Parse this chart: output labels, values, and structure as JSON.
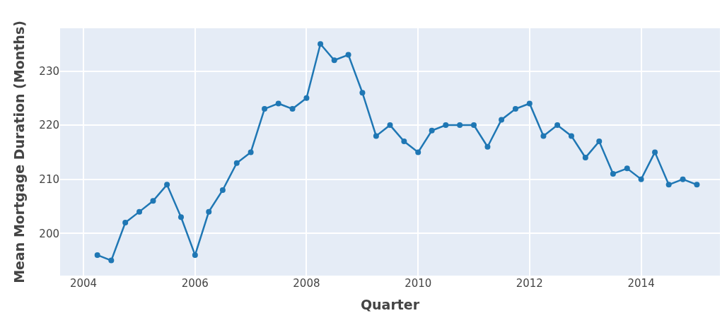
{
  "chart_data": {
    "type": "line",
    "xlabel": "Quarter",
    "ylabel": "Mean Mortgage Duration (Months)",
    "x": [
      "2004-04",
      "2004-07",
      "2004-10",
      "2005-01",
      "2005-04",
      "2005-07",
      "2005-10",
      "2006-01",
      "2006-04",
      "2006-07",
      "2006-10",
      "2007-01",
      "2007-04",
      "2007-07",
      "2007-10",
      "2008-01",
      "2008-04",
      "2008-07",
      "2008-10",
      "2009-01",
      "2009-04",
      "2009-07",
      "2009-10",
      "2010-01",
      "2010-04",
      "2010-07",
      "2010-10",
      "2011-01",
      "2011-04",
      "2011-07",
      "2011-10",
      "2012-01",
      "2012-04",
      "2012-07",
      "2012-10",
      "2013-01",
      "2013-04",
      "2013-07",
      "2013-10",
      "2014-01",
      "2014-04",
      "2014-07",
      "2014-10",
      "2015-01"
    ],
    "series": [
      {
        "color": "#1f77b4",
        "values": [
          196,
          195,
          202,
          204,
          206,
          209,
          203,
          196,
          204,
          208,
          213,
          215,
          223,
          224,
          223,
          225,
          235,
          232,
          233,
          226,
          218,
          220,
          217,
          215,
          219,
          220,
          220,
          220,
          216,
          221,
          223,
          224,
          218,
          220,
          218,
          214,
          217,
          211,
          212,
          210,
          215,
          209,
          210,
          209
        ]
      }
    ],
    "xlim": [
      "2003-08",
      "2015-06"
    ],
    "xticks": [
      {
        "value": "2004-01",
        "label": "2004"
      },
      {
        "value": "2006-01",
        "label": "2006"
      },
      {
        "value": "2008-01",
        "label": "2008"
      },
      {
        "value": "2010-01",
        "label": "2010"
      },
      {
        "value": "2012-01",
        "label": "2012"
      },
      {
        "value": "2014-01",
        "label": "2014"
      }
    ],
    "ylim": [
      192.2,
      237.9
    ],
    "yticks": [
      200,
      210,
      220,
      230
    ],
    "grid": true,
    "marker": "circle",
    "line_style": "solid",
    "legend": false
  }
}
